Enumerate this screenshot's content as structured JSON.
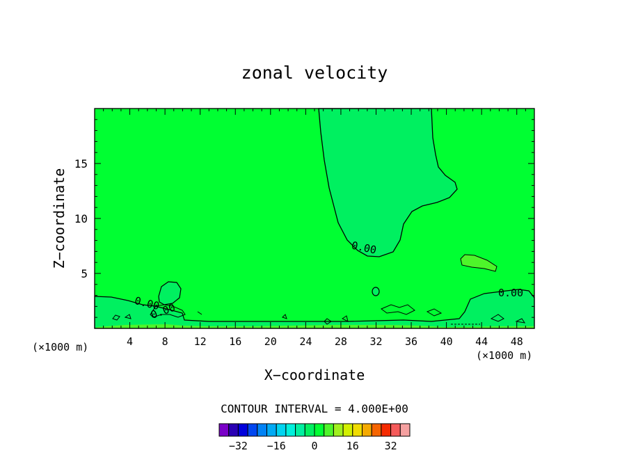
{
  "chart_data": {
    "type": "contour",
    "title": "zonal velocity",
    "xlabel": "X−coordinate",
    "ylabel": "Z−coordinate",
    "x_unit_left": "(×1000 m)",
    "x_unit_right": "(×1000 m)",
    "xlim": [
      0,
      50
    ],
    "ylim": [
      0,
      20
    ],
    "x_ticks": [
      4,
      8,
      12,
      16,
      20,
      24,
      28,
      32,
      36,
      40,
      44,
      48
    ],
    "y_ticks": [
      5,
      10,
      15
    ],
    "contour_interval_text": "CONTOUR INTERVAL = 4.000E+00",
    "contour_labels": [
      "0.00",
      "0.00",
      "0.00",
      "0.00"
    ],
    "colorbar": {
      "colors": [
        "#7a00c8",
        "#2a00b4",
        "#0000dc",
        "#0046f0",
        "#0082f5",
        "#00aaf5",
        "#00d4f0",
        "#00f0dc",
        "#00f0a0",
        "#00f060",
        "#00ff32",
        "#4ef52a",
        "#a0f01e",
        "#d2f000",
        "#f0dc00",
        "#f5aa00",
        "#f56400",
        "#f52a00",
        "#f55a5a",
        "#f5a0a0"
      ],
      "tick_labels": [
        "−32",
        "−16",
        "0",
        "16",
        "32"
      ],
      "tick_values": [
        -32,
        -16,
        0,
        16,
        32
      ],
      "range": [
        -40,
        40
      ]
    },
    "background_color": "#00ff32",
    "negative_region_color": "#00f060",
    "positive_region_color": "#4ef52a"
  }
}
